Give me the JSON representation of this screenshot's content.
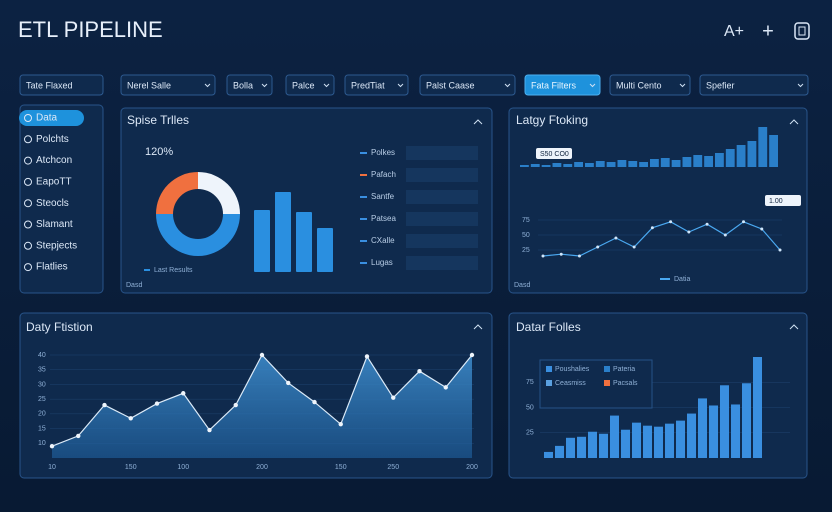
{
  "header": {
    "title": "ETL PIPELINE",
    "actions": [
      "A+",
      "+"
    ]
  },
  "filters": {
    "items": [
      "Tate Flaxed",
      "Nerel   Salle",
      "Bolla",
      "Palce",
      "PredTiat",
      "Palst   Caase",
      "Fata Filters",
      "Multi Cento",
      "Spefier"
    ],
    "active": 6
  },
  "sidebar": {
    "items": [
      "Data",
      "Polchts",
      "Atchcon",
      "EapoTT",
      "Steocls",
      "Slamant",
      "Stepjects",
      "Flatlies"
    ],
    "active": 0
  },
  "spend": {
    "title": "Spise Trlles",
    "kpi": "120%",
    "donut": {
      "values": [
        25,
        25,
        50
      ],
      "colors": [
        "#f0703f",
        "#eef4fb",
        "#2a8fe0"
      ]
    },
    "bars": {
      "values": [
        62,
        80,
        60,
        44
      ],
      "ylim": [
        0,
        100
      ],
      "color": "#2a8fe0"
    },
    "legend": "Last Results",
    "footer": "Dasd",
    "list": [
      "Polkes",
      "Pafach",
      "Santfe",
      "Patsea",
      "CXalle",
      "Lugas"
    ]
  },
  "latency": {
    "title": "Latgy Ftoking",
    "bars": {
      "values": [
        2,
        3,
        2,
        4,
        3,
        5,
        4,
        6,
        5,
        7,
        6,
        5,
        8,
        9,
        7,
        10,
        12,
        11,
        14,
        18,
        22,
        26,
        40,
        32
      ],
      "ylim": [
        0,
        40
      ],
      "color": "#2a7fc9"
    },
    "badges": [
      "S50 CO0",
      "1.00"
    ],
    "line": {
      "values": [
        15,
        18,
        15,
        30,
        45,
        30,
        62,
        72,
        55,
        68,
        50,
        72,
        60,
        25
      ],
      "ylim": [
        0,
        100
      ],
      "yticks": [
        25,
        50,
        75
      ],
      "color": "#4aa8f0"
    },
    "legend": "Datia",
    "footer": "Dasd"
  },
  "daily": {
    "title": "Daty Ftistion",
    "values": [
      9,
      12.5,
      23,
      18.5,
      23.5,
      27,
      14.5,
      23,
      40,
      30.5,
      24,
      16.5,
      39.5,
      25.5,
      34.5,
      29,
      40
    ],
    "xlim": [
      0,
      16
    ],
    "ylim": [
      5,
      40
    ],
    "yticks": [
      10,
      15,
      20,
      25,
      30,
      35,
      40
    ],
    "xticks": [
      {
        "value": 0,
        "label": "10"
      },
      {
        "value": 3,
        "label": "150"
      },
      {
        "value": 5,
        "label": "100"
      },
      {
        "value": 8,
        "label": "200"
      },
      {
        "value": 11,
        "label": "150"
      },
      {
        "value": 13,
        "label": "250"
      },
      {
        "value": 16,
        "label": "200"
      }
    ],
    "color": "#3f8fd0"
  },
  "files": {
    "title": "Datar Folles",
    "values": [
      6,
      12,
      20,
      21,
      26,
      24,
      42,
      28,
      35,
      32,
      31,
      34,
      37,
      44,
      59,
      52,
      72,
      53,
      74,
      100
    ],
    "ylim": [
      0,
      100
    ],
    "yticks": [
      25,
      50,
      75
    ],
    "color": "#3a8fe0",
    "legend": [
      "Poushalies",
      "Pateria",
      "Ceasmiss",
      "Pacsals"
    ],
    "legend_colors": [
      "#3a8fe0",
      "#2a7fc9",
      "#5aa0e0",
      "#f0703f"
    ]
  }
}
